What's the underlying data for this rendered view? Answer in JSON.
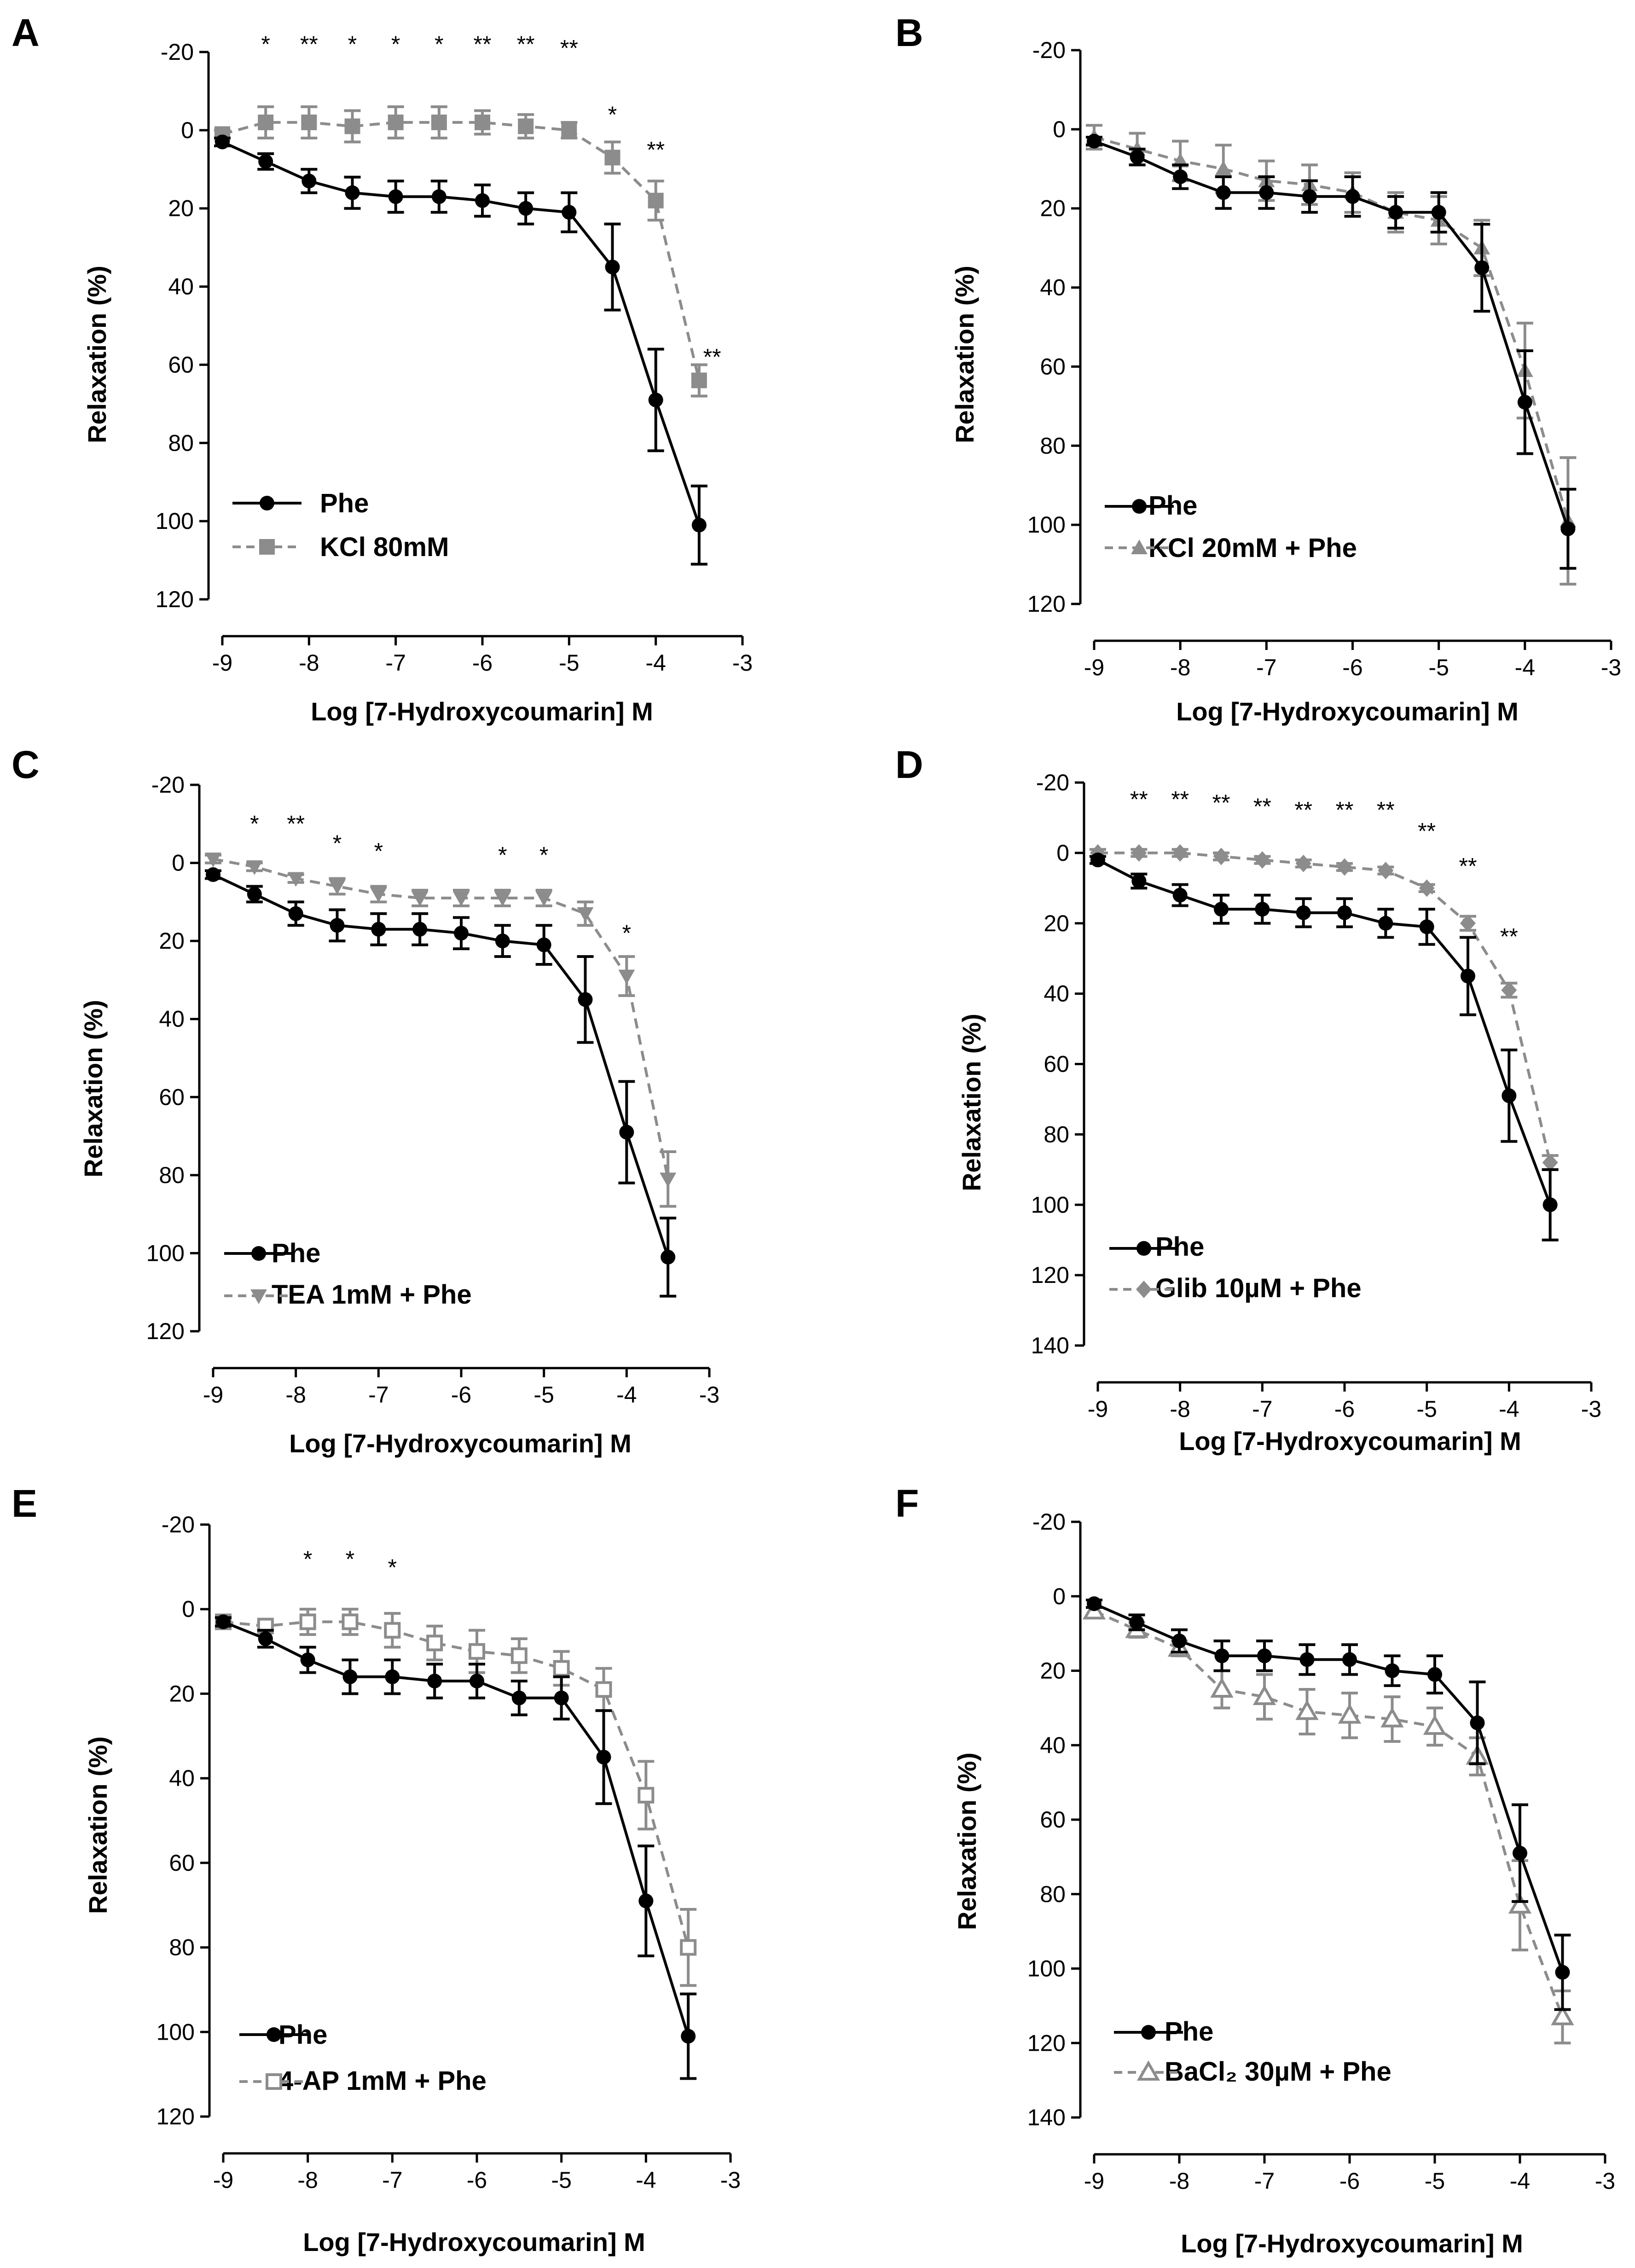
{
  "figure": {
    "colors": {
      "control": "#000000",
      "treatment": "#8c8c8c"
    }
  },
  "chart_data": [
    {
      "panel": "A",
      "type": "line",
      "xlabel": "Log [7-Hydroxycoumarin] M",
      "ylabel": "Relaxation (%)",
      "xlim": [
        -9,
        -3
      ],
      "ylim": [
        -20,
        120
      ],
      "xticks": [
        -9,
        -8,
        -7,
        -6,
        -5,
        -4,
        -3
      ],
      "yticks": [
        -20,
        0,
        20,
        40,
        60,
        80,
        100,
        120
      ],
      "x": [
        -9,
        -8.5,
        -8,
        -7.5,
        -7,
        -6.5,
        -6,
        -5.5,
        -5,
        -4.5,
        -4,
        -3.5
      ],
      "legend_position": "bottom-left",
      "series": [
        {
          "name": "Phe",
          "marker": "circle",
          "line": "solid",
          "values": [
            3,
            8,
            13,
            16,
            17,
            17,
            18,
            20,
            21,
            35,
            69,
            101
          ],
          "errors": [
            1,
            2,
            3,
            4,
            4,
            4,
            4,
            4,
            5,
            11,
            13,
            10
          ]
        },
        {
          "name": "KCl 80mM",
          "marker": "square",
          "line": "dashed",
          "values": [
            1,
            -2,
            -2,
            -1,
            -2,
            -2,
            -2,
            -1,
            0,
            7,
            18,
            64
          ],
          "errors": [
            1,
            4,
            4,
            4,
            4,
            4,
            3,
            3,
            2,
            4,
            5,
            4
          ]
        }
      ],
      "significance": [
        {
          "x": -8.5,
          "y": -20,
          "label": "*"
        },
        {
          "x": -8,
          "y": -20,
          "label": "**"
        },
        {
          "x": -7.5,
          "y": -20,
          "label": "*"
        },
        {
          "x": -7,
          "y": -20,
          "label": "*"
        },
        {
          "x": -6.5,
          "y": -20,
          "label": "*"
        },
        {
          "x": -6,
          "y": -20,
          "label": "**"
        },
        {
          "x": -5.5,
          "y": -20,
          "label": "**"
        },
        {
          "x": -5,
          "y": -19,
          "label": "**"
        },
        {
          "x": -4.5,
          "y": -2,
          "label": "*"
        },
        {
          "x": -4,
          "y": 7,
          "label": "**"
        },
        {
          "x": -3.35,
          "y": 60,
          "label": "**"
        }
      ]
    },
    {
      "panel": "B",
      "type": "line",
      "xlabel": "Log [7-Hydroxycoumarin] M",
      "ylabel": "Relaxation (%)",
      "xlim": [
        -9,
        -3
      ],
      "ylim": [
        -20,
        120
      ],
      "xticks": [
        -9,
        -8,
        -7,
        -6,
        -5,
        -4,
        -3
      ],
      "yticks": [
        -20,
        0,
        20,
        40,
        60,
        80,
        100,
        120
      ],
      "x": [
        -9,
        -8.5,
        -8,
        -7.5,
        -7,
        -6.5,
        -6,
        -5.5,
        -5,
        -4.5,
        -4,
        -3.5
      ],
      "legend_position": "bottom-left",
      "series": [
        {
          "name": "Phe",
          "marker": "circle",
          "line": "solid",
          "values": [
            3,
            7,
            12,
            16,
            16,
            17,
            17,
            21,
            21,
            35,
            69,
            101
          ],
          "errors": [
            1,
            2,
            3,
            4,
            4,
            4,
            5,
            4,
            5,
            11,
            13,
            10
          ]
        },
        {
          "name": "KCl 20mM + Phe",
          "marker": "triangle",
          "line": "dashed",
          "values": [
            2,
            5,
            8,
            10,
            13,
            14,
            16,
            21,
            23,
            30,
            61,
            99
          ],
          "errors": [
            3,
            4,
            5,
            6,
            5,
            5,
            5,
            5,
            6,
            7,
            12,
            16
          ]
        }
      ],
      "significance": []
    },
    {
      "panel": "C",
      "type": "line",
      "xlabel": "Log [7-Hydroxycoumarin] M",
      "ylabel": "Relaxation (%)",
      "xlim": [
        -9,
        -3
      ],
      "ylim": [
        -20,
        120
      ],
      "xticks": [
        -9,
        -8,
        -7,
        -6,
        -5,
        -4,
        -3
      ],
      "yticks": [
        -20,
        0,
        20,
        40,
        60,
        80,
        100,
        120
      ],
      "x": [
        -9,
        -8.5,
        -8,
        -7.5,
        -7,
        -6.5,
        -6,
        -5.5,
        -5,
        -4.5,
        -4,
        -3.5
      ],
      "legend_position": "bottom-left",
      "series": [
        {
          "name": "Phe",
          "marker": "circle",
          "line": "solid",
          "values": [
            3,
            8,
            13,
            16,
            17,
            17,
            18,
            20,
            21,
            35,
            69,
            101
          ],
          "errors": [
            1,
            2,
            3,
            4,
            4,
            4,
            4,
            4,
            5,
            11,
            13,
            10
          ]
        },
        {
          "name": "TEA 1mM + Phe",
          "marker": "triangle-down",
          "line": "dashed",
          "values": [
            -1,
            1,
            4,
            6,
            8,
            9,
            9,
            9,
            9,
            13,
            29,
            81
          ],
          "errors": [
            1,
            1,
            1,
            2,
            2,
            2,
            2,
            2,
            2,
            3,
            5,
            7
          ]
        }
      ],
      "significance": [
        {
          "x": -8.5,
          "y": -8,
          "label": "*"
        },
        {
          "x": -8,
          "y": -8,
          "label": "**"
        },
        {
          "x": -7.5,
          "y": -3,
          "label": "*"
        },
        {
          "x": -7,
          "y": -1,
          "label": "*"
        },
        {
          "x": -5.5,
          "y": 0,
          "label": "*"
        },
        {
          "x": -5,
          "y": 0,
          "label": "*"
        },
        {
          "x": -4,
          "y": 20,
          "label": "*"
        }
      ]
    },
    {
      "panel": "D",
      "type": "line",
      "xlabel": "Log [7-Hydroxycoumarin] M",
      "ylabel": "Relaxation (%)",
      "xlim": [
        -9,
        -3
      ],
      "ylim": [
        -20,
        140
      ],
      "xticks": [
        -9,
        -8,
        -7,
        -6,
        -5,
        -4,
        -3
      ],
      "yticks": [
        -20,
        0,
        20,
        40,
        60,
        80,
        100,
        120,
        140
      ],
      "x": [
        -9,
        -8.5,
        -8,
        -7.5,
        -7,
        -6.5,
        -6,
        -5.5,
        -5,
        -4.5,
        -4,
        -3.5
      ],
      "legend_position": "bottom-left",
      "series": [
        {
          "name": "Phe",
          "marker": "circle",
          "line": "solid",
          "values": [
            2,
            8,
            12,
            16,
            16,
            17,
            17,
            20,
            21,
            35,
            69,
            100
          ],
          "errors": [
            1,
            2,
            3,
            4,
            4,
            4,
            4,
            4,
            5,
            11,
            13,
            10
          ]
        },
        {
          "name": "Glib 10µM + Phe",
          "marker": "diamond",
          "line": "dashed",
          "values": [
            0,
            0,
            0,
            1,
            2,
            3,
            4,
            5,
            10,
            20,
            39,
            88
          ],
          "errors": [
            1,
            1,
            1,
            1,
            1,
            1,
            1,
            1,
            1,
            2,
            2,
            2
          ]
        }
      ],
      "significance": [
        {
          "x": -8.5,
          "y": -13,
          "label": "**"
        },
        {
          "x": -8,
          "y": -13,
          "label": "**"
        },
        {
          "x": -7.5,
          "y": -12,
          "label": "**"
        },
        {
          "x": -7,
          "y": -11,
          "label": "**"
        },
        {
          "x": -6.5,
          "y": -10,
          "label": "**"
        },
        {
          "x": -6,
          "y": -10,
          "label": "**"
        },
        {
          "x": -5.5,
          "y": -10,
          "label": "**"
        },
        {
          "x": -5,
          "y": -4,
          "label": "**"
        },
        {
          "x": -4.5,
          "y": 6,
          "label": "**"
        },
        {
          "x": -4,
          "y": 26,
          "label": "**"
        }
      ]
    },
    {
      "panel": "E",
      "type": "line",
      "xlabel": "Log [7-Hydroxycoumarin] M",
      "ylabel": "Relaxation (%)",
      "xlim": [
        -9,
        -3
      ],
      "ylim": [
        -20,
        120
      ],
      "xticks": [
        -9,
        -8,
        -7,
        -6,
        -5,
        -4,
        -3
      ],
      "yticks": [
        -20,
        0,
        20,
        40,
        60,
        80,
        100,
        120
      ],
      "x": [
        -9,
        -8.5,
        -8,
        -7.5,
        -7,
        -6.5,
        -6,
        -5.5,
        -5,
        -4.5,
        -4,
        -3.5
      ],
      "legend_position": "bottom-left",
      "series": [
        {
          "name": "Phe",
          "marker": "circle",
          "line": "solid",
          "values": [
            3,
            7,
            12,
            16,
            16,
            17,
            17,
            21,
            21,
            35,
            69,
            101
          ],
          "errors": [
            1,
            2,
            3,
            4,
            4,
            4,
            4,
            4,
            5,
            11,
            13,
            10
          ]
        },
        {
          "name": "4-AP 1mM + Phe",
          "marker": "square-open",
          "line": "dashed",
          "values": [
            3,
            4,
            3,
            3,
            5,
            8,
            10,
            11,
            14,
            19,
            44,
            80
          ],
          "errors": [
            1,
            1,
            3,
            3,
            4,
            4,
            5,
            4,
            4,
            5,
            8,
            9
          ]
        }
      ],
      "significance": [
        {
          "x": -8,
          "y": -10,
          "label": "*"
        },
        {
          "x": -7.5,
          "y": -10,
          "label": "*"
        },
        {
          "x": -7,
          "y": -8,
          "label": "*"
        }
      ]
    },
    {
      "panel": "F",
      "type": "line",
      "xlabel": "Log [7-Hydroxycoumarin] M",
      "ylabel": "Relaxation (%)",
      "xlim": [
        -9,
        -3
      ],
      "ylim": [
        -20,
        140
      ],
      "xticks": [
        -9,
        -8,
        -7,
        -6,
        -5,
        -4,
        -3
      ],
      "yticks": [
        -20,
        0,
        20,
        40,
        60,
        80,
        100,
        120,
        140
      ],
      "x": [
        -9,
        -8.5,
        -8,
        -7.5,
        -7,
        -6.5,
        -6,
        -5.5,
        -5,
        -4.5,
        -4,
        -3.5
      ],
      "legend_position": "bottom-left",
      "series": [
        {
          "name": "Phe",
          "marker": "circle",
          "line": "solid",
          "values": [
            2,
            7,
            12,
            16,
            16,
            17,
            17,
            20,
            21,
            34,
            69,
            101
          ],
          "errors": [
            1,
            2,
            3,
            4,
            4,
            4,
            4,
            4,
            5,
            11,
            13,
            10
          ]
        },
        {
          "name": "BaCl₂ 30µM + Phe",
          "marker": "triangle-open",
          "line": "dashed",
          "values": [
            4,
            9,
            14,
            25,
            27,
            31,
            32,
            33,
            35,
            43,
            83,
            113
          ],
          "errors": [
            1,
            2,
            2,
            5,
            6,
            6,
            6,
            6,
            5,
            5,
            12,
            7
          ]
        }
      ],
      "significance": []
    }
  ]
}
